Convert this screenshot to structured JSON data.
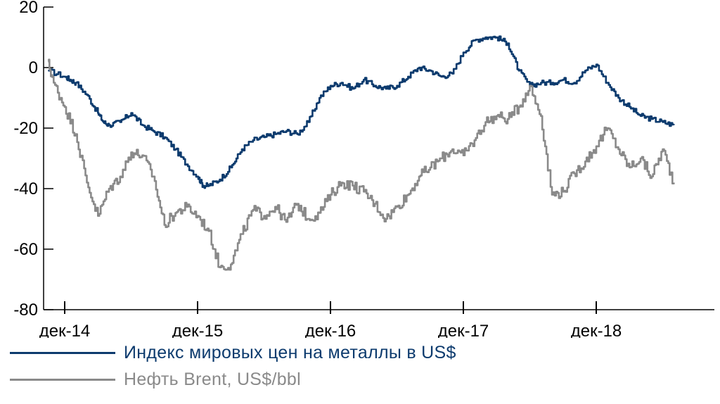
{
  "chart_data": {
    "type": "line",
    "title": "",
    "xlabel": "",
    "ylabel": "",
    "ylim": [
      -80,
      20
    ],
    "yticks": [
      20,
      0,
      -20,
      -40,
      -60,
      -80
    ],
    "xticks": [
      "дек-14",
      "дек-15",
      "дек-16",
      "дек-17",
      "дек-18"
    ],
    "x_unit": "months since дек-14",
    "grid": false,
    "legend_position": "bottom",
    "series": [
      {
        "name": "Индекс мировых цен на металлы в US$",
        "color": "#0d3b6e",
        "x": [
          -1.5,
          0,
          0.5,
          1,
          2,
          3,
          3.5,
          4,
          5,
          6,
          7,
          8,
          9,
          10,
          11,
          12,
          12.5,
          13,
          14,
          15,
          16,
          17,
          18,
          19,
          20,
          21,
          22,
          23,
          24,
          25,
          26,
          27,
          28,
          29,
          30,
          31,
          32,
          33,
          34,
          35,
          36,
          37,
          38,
          39,
          40,
          41,
          42,
          43,
          44,
          45,
          46,
          47,
          48,
          49,
          50,
          51,
          52,
          53,
          54,
          55
        ],
        "values": [
          -1,
          -3,
          -4,
          -5,
          -9,
          -15,
          -18,
          -19,
          -18,
          -15,
          -19,
          -21,
          -23,
          -27,
          -32,
          -36,
          -39,
          -39,
          -37,
          -33,
          -27,
          -24,
          -23,
          -22,
          -21,
          -22,
          -18,
          -10,
          -6,
          -5,
          -7,
          -4,
          -6,
          -7,
          -6,
          -3,
          0,
          -1,
          -3,
          -2,
          5,
          9,
          10,
          10,
          8,
          -1,
          -6,
          -5,
          -5,
          -4,
          -5,
          -1,
          1,
          -5,
          -10,
          -13,
          -16,
          -17,
          -18,
          -19
        ],
        "end_value": -19
      },
      {
        "name": "Нефть Brent, US$/bbl",
        "color": "#8a8a8a",
        "x": [
          -1.5,
          -1,
          0,
          1,
          2,
          3,
          4,
          5,
          6,
          7,
          8,
          9,
          10,
          11,
          12,
          13,
          14,
          15,
          16,
          17,
          18,
          19,
          20,
          21,
          22,
          23,
          24,
          25,
          26,
          27,
          28,
          29,
          30,
          31,
          32,
          33,
          34,
          35,
          36,
          37,
          38,
          39,
          40,
          41,
          42,
          43,
          44,
          45,
          46,
          47,
          48,
          49,
          50,
          51,
          52,
          53,
          54,
          55
        ],
        "values": [
          2,
          -5,
          -13,
          -22,
          -38,
          -49,
          -40,
          -36,
          -28,
          -29,
          -36,
          -52,
          -48,
          -46,
          -49,
          -54,
          -66,
          -65,
          -55,
          -47,
          -49,
          -46,
          -51,
          -45,
          -50,
          -48,
          -42,
          -38,
          -39,
          -41,
          -45,
          -50,
          -46,
          -42,
          -36,
          -33,
          -30,
          -27,
          -29,
          -24,
          -18,
          -16,
          -17,
          -13,
          -6,
          -16,
          -42,
          -41,
          -35,
          -31,
          -26,
          -20,
          -27,
          -33,
          -30,
          -36,
          -27,
          -38
        ],
        "end_value": -38
      }
    ]
  }
}
